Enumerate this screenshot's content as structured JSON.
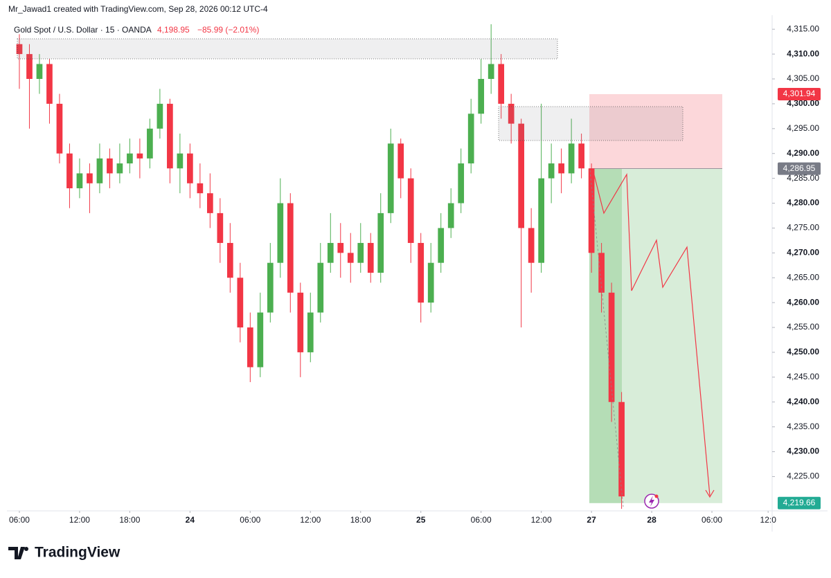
{
  "header": "Mr_Jawad1 created with TradingView.com, Sep 28, 2026 00:12 UTC-4",
  "brand": "TradingView",
  "chart_data": {
    "type": "candlestick",
    "title": "Gold Spot / U.S. Dollar · 15 · OANDA",
    "last_price": "4,198.95",
    "change": "−85.99 (−2.01%)",
    "up_color": "#4caf50",
    "down_color": "#f23645",
    "grid": false,
    "x": [
      0,
      1,
      2,
      3,
      4,
      5,
      6,
      7,
      8,
      9,
      10,
      11,
      12,
      13,
      14,
      15,
      16,
      17,
      18,
      19,
      20,
      21,
      22,
      23,
      24,
      25,
      26,
      27,
      28,
      29,
      30,
      31,
      32,
      33,
      34,
      35,
      36,
      37,
      38,
      39,
      40,
      41,
      42,
      43,
      44,
      45,
      46,
      47,
      48,
      49,
      50,
      51,
      52,
      53,
      54,
      55,
      56,
      57,
      58,
      59,
      60
    ],
    "open": [
      4312,
      4310,
      4305,
      4308,
      4300,
      4290,
      4283,
      4286,
      4284,
      4289,
      4286,
      4288,
      4290,
      4289,
      4295,
      4300,
      4287,
      4290,
      4284,
      4282,
      4278,
      4272,
      4265,
      4255,
      4247,
      4258,
      4268,
      4280,
      4262,
      4250,
      4258,
      4268,
      4272,
      4270,
      4268,
      4272,
      4266,
      4278,
      4292,
      4285,
      4272,
      4260,
      4268,
      4275,
      4280,
      4288,
      4298,
      4305,
      4308,
      4300,
      4296,
      4275,
      4268,
      4285,
      4288,
      4286,
      4292,
      4287,
      4270,
      4262,
      4240
    ],
    "high": [
      4314,
      4312,
      4310,
      4309,
      4302,
      4292,
      4289,
      4288,
      4292,
      4291,
      4292,
      4293,
      4293,
      4297,
      4303,
      4301,
      4294,
      4292,
      4288,
      4286,
      4281,
      4276,
      4268,
      4258,
      4262,
      4272,
      4285,
      4282,
      4264,
      4262,
      4272,
      4278,
      4276,
      4274,
      4276,
      4274,
      4282,
      4295,
      4293,
      4287,
      4274,
      4272,
      4278,
      4283,
      4291,
      4301,
      4309,
      4316,
      4310,
      4302,
      4297,
      4279,
      4300,
      4292,
      4291,
      4297,
      4294,
      4288,
      4272,
      4264,
      4242
    ],
    "low": [
      4303,
      4295,
      4302,
      4296,
      4288,
      4279,
      4281,
      4278,
      4282,
      4283,
      4284,
      4286,
      4285,
      4287,
      4293,
      4284,
      4282,
      4281,
      4279,
      4275,
      4268,
      4262,
      4252,
      4244,
      4245,
      4256,
      4265,
      4258,
      4245,
      4248,
      4256,
      4266,
      4265,
      4264,
      4266,
      4264,
      4264,
      4276,
      4281,
      4268,
      4256,
      4258,
      4266,
      4273,
      4278,
      4286,
      4296,
      4302,
      4297,
      4292,
      4255,
      4262,
      4266,
      4280,
      4282,
      4284,
      4285,
      4266,
      4258,
      4236,
      4218.5
    ],
    "close": [
      4310,
      4305,
      4308,
      4300,
      4290,
      4283,
      4286,
      4284,
      4289,
      4286,
      4288,
      4290,
      4289,
      4295,
      4300,
      4287,
      4290,
      4284,
      4282,
      4278,
      4272,
      4265,
      4255,
      4247,
      4258,
      4268,
      4280,
      4262,
      4250,
      4258,
      4268,
      4272,
      4270,
      4268,
      4272,
      4266,
      4278,
      4292,
      4285,
      4272,
      4260,
      4268,
      4275,
      4280,
      4288,
      4298,
      4305,
      4308,
      4300,
      4296,
      4275,
      4268,
      4285,
      4288,
      4286,
      4292,
      4287,
      4270,
      4262,
      4240,
      4221
    ],
    "xlim": [
      -1.24,
      75
    ],
    "ylim": [
      4218.1,
      4316.7
    ],
    "xticks": [
      {
        "value": 0,
        "label": "06:00"
      },
      {
        "value": 6,
        "label": "12:00"
      },
      {
        "value": 11,
        "label": "18:00"
      },
      {
        "value": 17,
        "label": "24"
      },
      {
        "value": 23,
        "label": "06:00"
      },
      {
        "value": 29,
        "label": "12:00"
      },
      {
        "value": 34,
        "label": "18:00"
      },
      {
        "value": 40,
        "label": "25"
      },
      {
        "value": 46,
        "label": "06:00"
      },
      {
        "value": 52,
        "label": "12:00"
      },
      {
        "value": 57,
        "label": "27"
      },
      {
        "value": 63,
        "label": "28"
      },
      {
        "value": 69,
        "label": "06:00"
      },
      {
        "value": 74.6,
        "label": "12:0"
      }
    ],
    "yticks": [
      {
        "value": 4315,
        "label": "4,315.00"
      },
      {
        "value": 4310,
        "label": "4,310.00"
      },
      {
        "value": 4305,
        "label": "4,305.00"
      },
      {
        "value": 4300,
        "label": "4,300.00"
      },
      {
        "value": 4295,
        "label": "4,295.00"
      },
      {
        "value": 4290,
        "label": "4,290.00"
      },
      {
        "value": 4285,
        "label": "4,285.00"
      },
      {
        "value": 4280,
        "label": "4,280.00"
      },
      {
        "value": 4275,
        "label": "4,275.00"
      },
      {
        "value": 4270,
        "label": "4,270.00"
      },
      {
        "value": 4265,
        "label": "4,265.00"
      },
      {
        "value": 4260,
        "label": "4,260.00"
      },
      {
        "value": 4255,
        "label": "4,255.00"
      },
      {
        "value": 4250,
        "label": "4,250.00"
      },
      {
        "value": 4245,
        "label": "4,245.00"
      },
      {
        "value": 4240,
        "label": "4,240.00"
      },
      {
        "value": 4235,
        "label": "4,235.00"
      },
      {
        "value": 4230,
        "label": "4,230.00"
      },
      {
        "value": 4225,
        "label": "4,225.00"
      }
    ],
    "price_labels": [
      {
        "value": 4301.94,
        "label": "4,301.94",
        "color": "#f23645"
      },
      {
        "value": 4286.95,
        "label": "4,286.95",
        "color": "#787b86"
      },
      {
        "value": 4219.66,
        "label": "4,219.66",
        "color": "#22ab94"
      }
    ]
  }
}
